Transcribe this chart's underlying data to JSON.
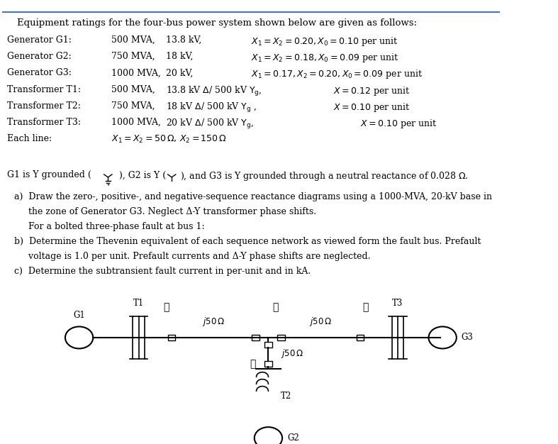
{
  "title_line": "Equipment ratings for the four-bus power system shown below are given as follows:",
  "bg_color": "#ffffff",
  "text_color": "#000000",
  "fig_width": 7.87,
  "fig_height": 6.26,
  "table_rows": [
    [
      "Generator G1:",
      "500 MVA,",
      "13.8 kV,",
      "X₁ = X₂ = 0.20, X₀ = 0.10 per unit"
    ],
    [
      "Generator G2:",
      "750 MVA,",
      "18 kV,",
      "X₁ = X₂ = 0.18, X₀ = 0.09 per unit"
    ],
    [
      "Generator G3:",
      "1000 MVA,",
      "20 kV,",
      "X₁ = 0.17, X₂ = 0.20, X₀ = 0.09 per unit"
    ],
    [
      "Transformer T1:",
      "500 MVA,",
      "13.8 kV Δ/ 500 kV Yⁱ,",
      "X = 0.12 per unit"
    ],
    [
      "Transformer T2:",
      "750 MVA,",
      "18 kV Δ/ 500 kV Yⁱ ,",
      "X = 0.10 per unit"
    ],
    [
      "Transformer T3:",
      "1000 MVA,",
      "20 kV Δ/ 500 kV Yⁱ,",
      "X = 0.10 per unit"
    ],
    [
      "Each line:",
      "",
      "X₁ = X₂ = 50 Ω, X₂ = 150 Ω",
      ""
    ]
  ],
  "g1_grounded_text": "G1 is Y grounded (    ), G2 is Y (    ), and G3 is Y grounded through a neutral reactance of 0.028 Ω.",
  "questions": [
    "a)  Draw the zero-, positive-, and negative-sequence reactance diagrams using a 1000-MVA, 20-kV base in",
    "     the zone of Generator G3. Neglect Δ-Y transformer phase shifts.",
    "     For a bolted three-phase fault at bus 1:",
    "b)  Determine the Thevenin equivalent of each sequence network as viewed form the fault bus. Prefault",
    "     voltage is 1.0 per unit. Prefault currents and Δ-Y phase shifts are neglected.",
    "c)  Determine the subtransient fault current in per-unit and in kA."
  ]
}
